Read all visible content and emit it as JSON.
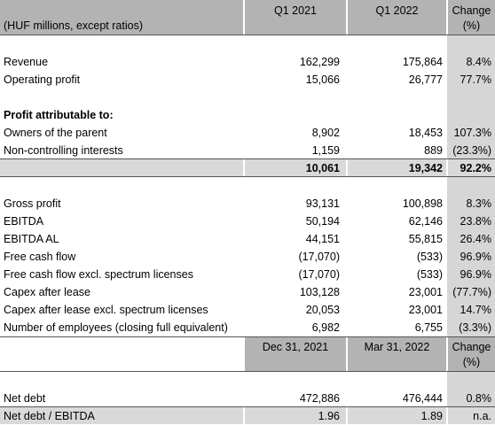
{
  "header": {
    "units": "(HUF millions, except ratios)",
    "col1": "Q1 2021",
    "col2": "Q1 2022",
    "col3_line1": "Change",
    "col3_line2": "(%)"
  },
  "rows_a": [
    {
      "label": "Revenue",
      "v1": "162,299",
      "v2": "175,864",
      "v3": "8.4%"
    },
    {
      "label": "Operating profit",
      "v1": "15,066",
      "v2": "26,777",
      "v3": "77.7%"
    }
  ],
  "profit_heading": "Profit attributable to:",
  "rows_b": [
    {
      "label": "Owners of the parent",
      "v1": "8,902",
      "v2": "18,453",
      "v3": "107.3%"
    },
    {
      "label": "Non-controlling interests",
      "v1": "1,159",
      "v2": "889",
      "v3": "(23.3%)"
    }
  ],
  "total": {
    "v1": "10,061",
    "v2": "19,342",
    "v3": "92.2%"
  },
  "rows_c": [
    {
      "label": "Gross profit",
      "v1": "93,131",
      "v2": "100,898",
      "v3": "8.3%"
    },
    {
      "label": "EBITDA",
      "v1": "50,194",
      "v2": "62,146",
      "v3": "23.8%"
    },
    {
      "label": "EBITDA AL",
      "v1": "44,151",
      "v2": "55,815",
      "v3": "26.4%"
    },
    {
      "label": "Free cash flow",
      "v1": "(17,070)",
      "v2": "(533)",
      "v3": "96.9%"
    },
    {
      "label": "Free cash flow excl. spectrum licenses",
      "v1": "(17,070)",
      "v2": "(533)",
      "v3": "96.9%"
    },
    {
      "label": "Capex after lease",
      "v1": "103,128",
      "v2": "23,001",
      "v3": "(77.7%)"
    },
    {
      "label": "Capex after lease excl. spectrum licenses",
      "v1": "20,053",
      "v2": "23,001",
      "v3": "14.7%"
    },
    {
      "label": "Number of employees (closing full equivalent)",
      "v1": "6,982",
      "v2": "6,755",
      "v3": "(3.3%)"
    }
  ],
  "header2": {
    "col1": "Dec 31, 2021",
    "col2": "Mar 31, 2022",
    "col3_line1": "Change",
    "col3_line2": "(%)"
  },
  "rows_d": [
    {
      "label": "Net debt",
      "v1": "472,886",
      "v2": "476,444",
      "v3": "0.8%"
    },
    {
      "label": "Net debt / EBITDA",
      "v1": "1.96",
      "v2": "1.89",
      "v3": "n.a."
    }
  ]
}
